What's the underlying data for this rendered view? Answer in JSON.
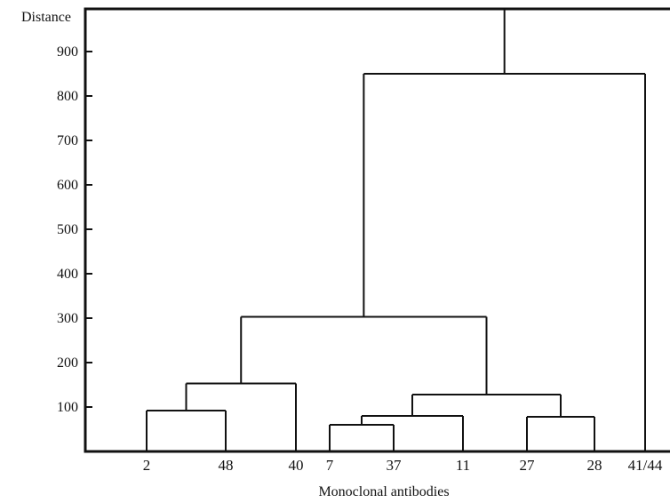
{
  "chart_data": {
    "type": "dendrogram",
    "ylabel": "Distance",
    "xlabel": "Monoclonal antibodies",
    "yticks": [
      100,
      200,
      300,
      400,
      500,
      600,
      700,
      800,
      900
    ],
    "leaves": [
      "2",
      "48",
      "40",
      "7",
      "37",
      "11",
      "27",
      "28",
      "41/44"
    ],
    "merges": [
      {
        "left": "7",
        "right": "37",
        "height": 60
      },
      {
        "left": "27",
        "right": "28",
        "height": 78
      },
      {
        "left": "(7,37)",
        "right": "11",
        "height": 80
      },
      {
        "left": "2",
        "right": "48",
        "height": 92
      },
      {
        "left": "((7,37),11)",
        "right": "(27,28)",
        "height": 128
      },
      {
        "left": "(2,48)",
        "right": "40",
        "height": 153
      },
      {
        "left": "((2,48),40)",
        "right": "(((7,37),11),(27,28))",
        "height": 303
      },
      {
        "left": "(all others)",
        "right": "41/44",
        "height": 850
      }
    ]
  }
}
